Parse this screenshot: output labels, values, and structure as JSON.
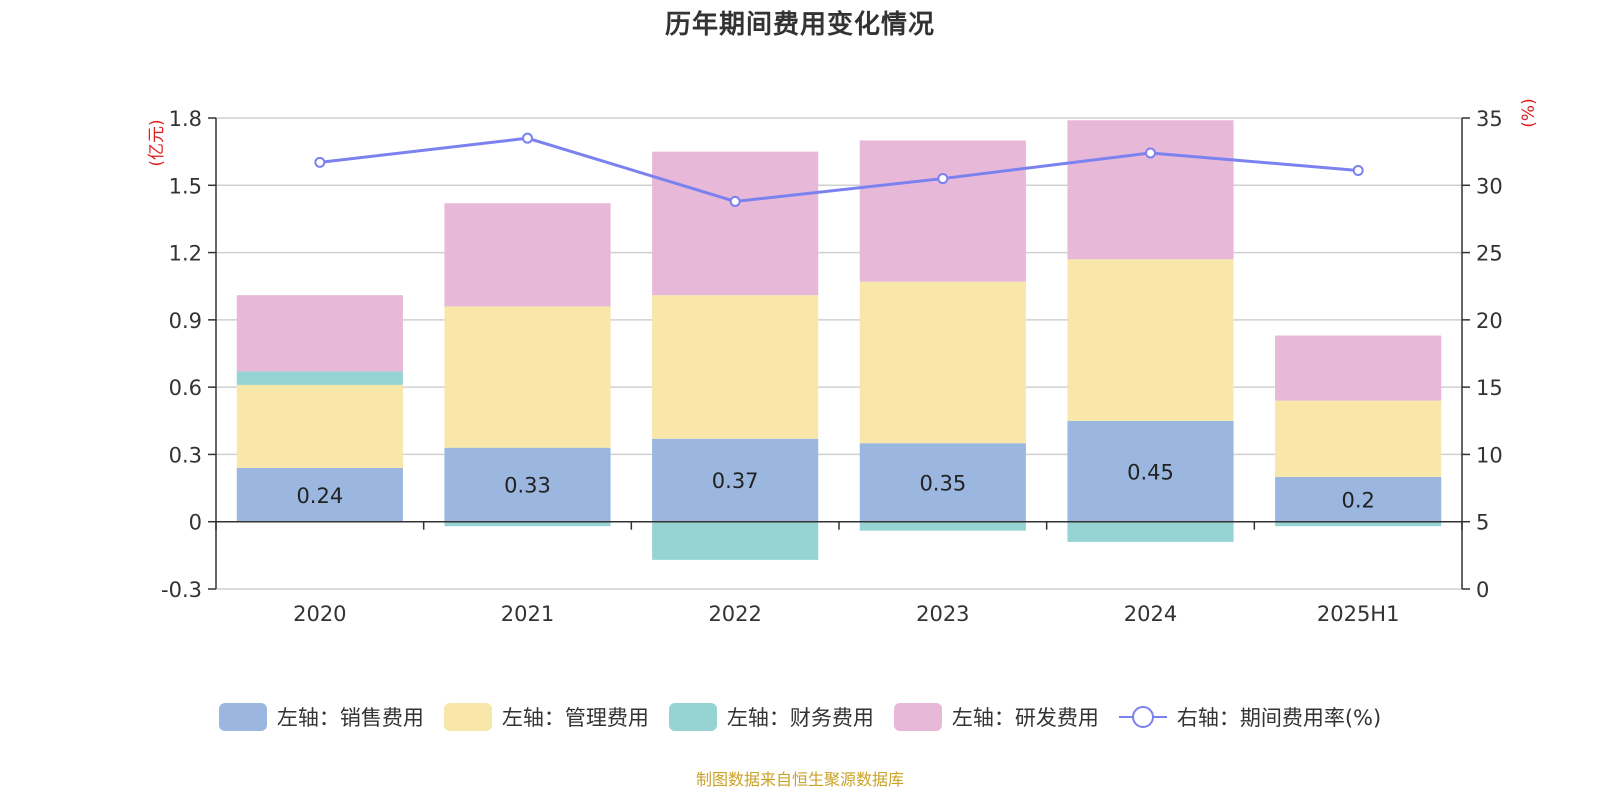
{
  "chart_data": {
    "type": "bar",
    "title": "历年期间费用变化情况",
    "left_axis_unit": "(亿元)",
    "right_axis_unit": "(%)",
    "categories": [
      "2020",
      "2021",
      "2022",
      "2023",
      "2024",
      "2025H1"
    ],
    "left_ylim": [
      -0.3,
      1.8
    ],
    "left_ticks": [
      "-0.3",
      "0",
      "0.3",
      "0.6",
      "0.9",
      "1.2",
      "1.5",
      "1.8"
    ],
    "right_ylim": [
      0,
      35
    ],
    "right_ticks": [
      "0",
      "5",
      "10",
      "15",
      "20",
      "25",
      "30",
      "35"
    ],
    "grid": true,
    "legend_position": "bottom",
    "series": [
      {
        "name": "左轴：销售费用",
        "type": "bar",
        "axis": "left",
        "color": "#9bb7e0",
        "values": [
          0.24,
          0.33,
          0.37,
          0.35,
          0.45,
          0.2
        ],
        "labels": [
          "0.24",
          "0.33",
          "0.37",
          "0.35",
          "0.45",
          "0.2"
        ]
      },
      {
        "name": "左轴：管理费用",
        "type": "bar",
        "axis": "left",
        "color": "#f8e7a8",
        "values": [
          0.37,
          0.63,
          0.64,
          0.72,
          0.72,
          0.34
        ]
      },
      {
        "name": "左轴：财务费用",
        "type": "bar",
        "axis": "left",
        "color": "#96d4d4",
        "values": [
          0.06,
          -0.02,
          -0.17,
          -0.04,
          -0.09,
          -0.02
        ]
      },
      {
        "name": "左轴：研发费用",
        "type": "bar",
        "axis": "left",
        "color": "#e8b8d8",
        "values": [
          0.34,
          0.46,
          0.64,
          0.63,
          0.62,
          0.29
        ]
      },
      {
        "name": "右轴：期间费用率(%)",
        "type": "line",
        "axis": "right",
        "color": "#7b82ef",
        "values": [
          31.7,
          33.5,
          28.8,
          30.5,
          32.4,
          31.1
        ]
      }
    ]
  },
  "source_note": "制图数据来自恒生聚源数据库"
}
